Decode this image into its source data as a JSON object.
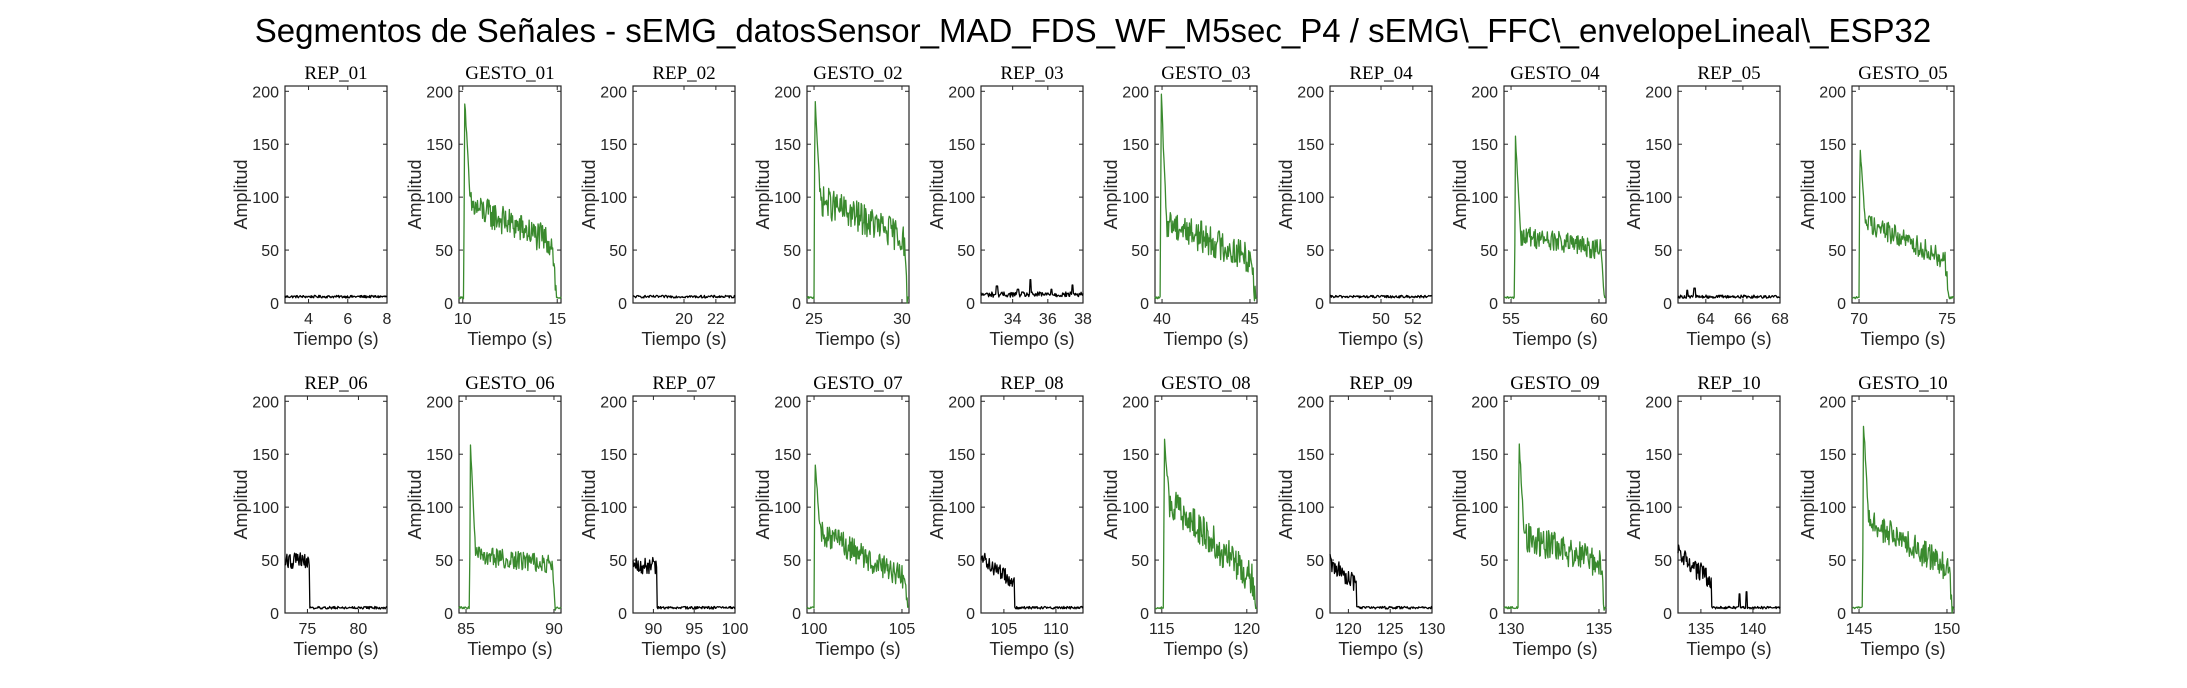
{
  "chart_data": {
    "type": "line",
    "title": "Segmentos de Señales - sEMG_datosSensor_MAD_FDS_WF_M5sec_P4 / sEMG\\_FFC\\_envelopeLineal\\_ESP32",
    "colors": {
      "rep": "#000000",
      "gesto": "#3a8a2e"
    },
    "panels": [
      {
        "title": "REP_01",
        "kind": "rep",
        "xlabel": "Tiempo (s)",
        "ylabel": "Amplitud",
        "xlim": [
          2.8,
          8.0
        ],
        "ylim": [
          0,
          205
        ],
        "xticks": [
          4,
          6,
          8
        ],
        "yticks": [
          0,
          50,
          100,
          150,
          200
        ],
        "profile": {
          "base": 6,
          "noise": 1.2,
          "peaks": []
        }
      },
      {
        "title": "GESTO_01",
        "kind": "gesto",
        "xlabel": "Tiempo (s)",
        "ylabel": "Amplitud",
        "xlim": [
          9.8,
          15.2
        ],
        "ylim": [
          0,
          205
        ],
        "xticks": [
          10,
          15
        ],
        "yticks": [
          0,
          50,
          100,
          150,
          200
        ],
        "profile": {
          "start": 10.05,
          "end": 14.95,
          "peak": 193,
          "plateau_start": 95,
          "plateau_end": 55,
          "noise": 14,
          "base": 5
        }
      },
      {
        "title": "REP_02",
        "kind": "rep",
        "xlabel": "Tiempo (s)",
        "ylabel": "Amplitud",
        "xlim": [
          16.8,
          23.2
        ],
        "ylim": [
          0,
          205
        ],
        "xticks": [
          20,
          22
        ],
        "yticks": [
          0,
          50,
          100,
          150,
          200
        ],
        "profile": {
          "base": 6,
          "noise": 1.2,
          "peaks": []
        }
      },
      {
        "title": "GESTO_02",
        "kind": "gesto",
        "xlabel": "Tiempo (s)",
        "ylabel": "Amplitud",
        "xlim": [
          24.6,
          30.4
        ],
        "ylim": [
          0,
          205
        ],
        "xticks": [
          25,
          30
        ],
        "yticks": [
          0,
          50,
          100,
          150,
          200
        ],
        "profile": {
          "start": 25.0,
          "end": 30.3,
          "peak": 198,
          "plateau_start": 100,
          "plateau_end": 60,
          "noise": 15,
          "base": 5
        }
      },
      {
        "title": "REP_03",
        "kind": "rep",
        "xlabel": "Tiempo (s)",
        "ylabel": "Amplitud",
        "xlim": [
          32.2,
          38.0
        ],
        "ylim": [
          0,
          205
        ],
        "xticks": [
          34,
          36,
          38
        ],
        "yticks": [
          0,
          50,
          100,
          150,
          200
        ],
        "profile": {
          "base": 8,
          "noise": 2.5,
          "peaks": [
            [
              33.1,
              16
            ],
            [
              34.3,
              13
            ],
            [
              35.0,
              22
            ],
            [
              36.2,
              13
            ],
            [
              37.4,
              17
            ]
          ]
        }
      },
      {
        "title": "GESTO_03",
        "kind": "gesto",
        "xlabel": "Tiempo (s)",
        "ylabel": "Amplitud",
        "xlim": [
          39.6,
          45.4
        ],
        "ylim": [
          0,
          205
        ],
        "xticks": [
          40,
          45
        ],
        "yticks": [
          0,
          50,
          100,
          150,
          200
        ],
        "profile": {
          "start": 39.9,
          "end": 45.3,
          "peak": 200,
          "plateau_start": 80,
          "plateau_end": 40,
          "noise": 15,
          "base": 5
        }
      },
      {
        "title": "REP_04",
        "kind": "rep",
        "xlabel": "Tiempo (s)",
        "ylabel": "Amplitud",
        "xlim": [
          46.8,
          53.2
        ],
        "ylim": [
          0,
          205
        ],
        "xticks": [
          50,
          52
        ],
        "yticks": [
          0,
          50,
          100,
          150,
          200
        ],
        "profile": {
          "base": 6,
          "noise": 1.2,
          "peaks": []
        }
      },
      {
        "title": "GESTO_04",
        "kind": "gesto",
        "xlabel": "Tiempo (s)",
        "ylabel": "Amplitud",
        "xlim": [
          54.6,
          60.4
        ],
        "ylim": [
          0,
          205
        ],
        "xticks": [
          55,
          60
        ],
        "yticks": [
          0,
          50,
          100,
          150,
          200
        ],
        "profile": {
          "start": 55.2,
          "end": 60.3,
          "peak": 158,
          "plateau_start": 65,
          "plateau_end": 50,
          "noise": 10,
          "base": 5
        }
      },
      {
        "title": "REP_05",
        "kind": "rep",
        "xlabel": "Tiempo (s)",
        "ylabel": "Amplitud",
        "xlim": [
          62.5,
          68.0
        ],
        "ylim": [
          0,
          205
        ],
        "xticks": [
          64,
          66,
          68
        ],
        "yticks": [
          0,
          50,
          100,
          150,
          200
        ],
        "profile": {
          "base": 6,
          "noise": 1.5,
          "peaks": [
            [
              63.0,
              12
            ],
            [
              63.4,
              14
            ]
          ]
        }
      },
      {
        "title": "GESTO_05",
        "kind": "gesto",
        "xlabel": "Tiempo (s)",
        "ylabel": "Amplitud",
        "xlim": [
          69.6,
          75.4
        ],
        "ylim": [
          0,
          205
        ],
        "xticks": [
          70,
          75
        ],
        "yticks": [
          0,
          50,
          100,
          150,
          200
        ],
        "profile": {
          "start": 70.0,
          "end": 75.1,
          "peak": 150,
          "plateau_start": 80,
          "plateau_end": 40,
          "noise": 10,
          "base": 5
        }
      },
      {
        "title": "REP_06",
        "kind": "rep",
        "xlabel": "Tiempo (s)",
        "ylabel": "Amplitud",
        "xlim": [
          72.8,
          82.8
        ],
        "ylim": [
          0,
          205
        ],
        "xticks": [
          75,
          80
        ],
        "yticks": [
          0,
          50,
          100,
          150,
          200
        ],
        "profile": {
          "base": 5,
          "noise": 1.2,
          "peaks": [],
          "lead": {
            "end": 75.2,
            "level": 50,
            "noise": 8
          }
        }
      },
      {
        "title": "GESTO_06",
        "kind": "gesto",
        "xlabel": "Tiempo (s)",
        "ylabel": "Amplitud",
        "xlim": [
          84.6,
          90.4
        ],
        "ylim": [
          0,
          205
        ],
        "xticks": [
          85,
          90
        ],
        "yticks": [
          0,
          50,
          100,
          150,
          200
        ],
        "profile": {
          "start": 85.2,
          "end": 90.1,
          "peak": 160,
          "plateau_start": 55,
          "plateau_end": 45,
          "noise": 9,
          "base": 5
        }
      },
      {
        "title": "REP_07",
        "kind": "rep",
        "xlabel": "Tiempo (s)",
        "ylabel": "Amplitud",
        "xlim": [
          87.5,
          100.0
        ],
        "ylim": [
          0,
          205
        ],
        "xticks": [
          90,
          95,
          100
        ],
        "yticks": [
          0,
          50,
          100,
          150,
          200
        ],
        "profile": {
          "base": 5,
          "noise": 1.2,
          "peaks": [],
          "lead": {
            "end": 90.4,
            "level": 45,
            "noise": 8
          }
        }
      },
      {
        "title": "GESTO_07",
        "kind": "gesto",
        "xlabel": "Tiempo (s)",
        "ylabel": "Amplitud",
        "xlim": [
          99.6,
          105.4
        ],
        "ylim": [
          0,
          205
        ],
        "xticks": [
          100,
          105
        ],
        "yticks": [
          0,
          50,
          100,
          150,
          200
        ],
        "profile": {
          "start": 100.0,
          "end": 105.3,
          "peak": 143,
          "plateau_start": 80,
          "plateau_end": 30,
          "noise": 12,
          "base": 5
        }
      },
      {
        "title": "REP_08",
        "kind": "rep",
        "xlabel": "Tiempo (s)",
        "ylabel": "Amplitud",
        "xlim": [
          102.8,
          112.6
        ],
        "ylim": [
          0,
          205
        ],
        "xticks": [
          105,
          110
        ],
        "yticks": [
          0,
          50,
          100,
          150,
          200
        ],
        "profile": {
          "base": 5,
          "noise": 1.2,
          "peaks": [],
          "lead": {
            "end": 106.0,
            "level": 52,
            "noise": 7,
            "decay": true
          }
        }
      },
      {
        "title": "GESTO_08",
        "kind": "gesto",
        "xlabel": "Tiempo (s)",
        "ylabel": "Amplitud",
        "xlim": [
          114.6,
          120.6
        ],
        "ylim": [
          0,
          205
        ],
        "xticks": [
          115,
          120
        ],
        "yticks": [
          0,
          50,
          100,
          150,
          200
        ],
        "profile": {
          "start": 115.1,
          "end": 120.5,
          "peak": 163,
          "plateau_start": 110,
          "plateau_end": 30,
          "noise": 16,
          "base": 5
        }
      },
      {
        "title": "REP_09",
        "kind": "rep",
        "xlabel": "Tiempo (s)",
        "ylabel": "Amplitud",
        "xlim": [
          117.8,
          130.0
        ],
        "ylim": [
          0,
          205
        ],
        "xticks": [
          120,
          125,
          130
        ],
        "yticks": [
          0,
          50,
          100,
          150,
          200
        ],
        "profile": {
          "base": 5,
          "noise": 1.2,
          "peaks": [],
          "lead": {
            "end": 121.0,
            "level": 48,
            "noise": 8,
            "decay": true
          }
        }
      },
      {
        "title": "GESTO_09",
        "kind": "gesto",
        "xlabel": "Tiempo (s)",
        "ylabel": "Amplitud",
        "xlim": [
          129.6,
          135.4
        ],
        "ylim": [
          0,
          205
        ],
        "xticks": [
          130,
          135
        ],
        "yticks": [
          0,
          50,
          100,
          150,
          200
        ],
        "profile": {
          "start": 130.4,
          "end": 135.3,
          "peak": 166,
          "plateau_start": 75,
          "plateau_end": 45,
          "noise": 14,
          "base": 5
        }
      },
      {
        "title": "REP_10",
        "kind": "rep",
        "xlabel": "Tiempo (s)",
        "ylabel": "Amplitud",
        "xlim": [
          132.8,
          142.6
        ],
        "ylim": [
          0,
          205
        ],
        "xticks": [
          135,
          140
        ],
        "yticks": [
          0,
          50,
          100,
          150,
          200
        ],
        "profile": {
          "base": 5,
          "noise": 1.2,
          "peaks": [
            [
              138.7,
              18
            ],
            [
              139.4,
              20
            ]
          ],
          "lead": {
            "end": 136.0,
            "level": 55,
            "noise": 10,
            "decay": true
          }
        }
      },
      {
        "title": "GESTO_10",
        "kind": "gesto",
        "xlabel": "Tiempo (s)",
        "ylabel": "Amplitud",
        "xlim": [
          144.6,
          150.4
        ],
        "ylim": [
          0,
          205
        ],
        "xticks": [
          145,
          150
        ],
        "yticks": [
          0,
          50,
          100,
          150,
          200
        ],
        "profile": {
          "start": 145.2,
          "end": 150.3,
          "peak": 180,
          "plateau_start": 90,
          "plateau_end": 40,
          "noise": 13,
          "base": 5
        }
      }
    ]
  }
}
